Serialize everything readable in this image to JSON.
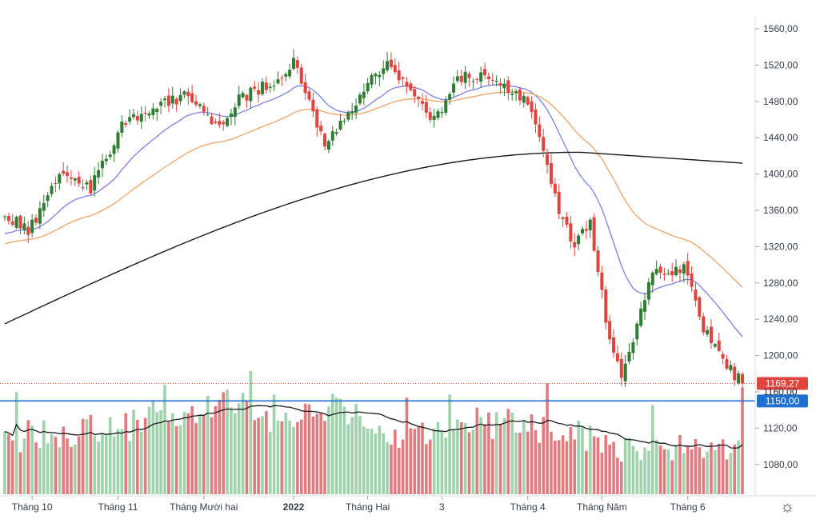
{
  "chart_data": {
    "type": "candlestick",
    "title": "",
    "xlabel": "",
    "ylabel": "",
    "ylim": [
      1053,
      1578
    ],
    "y_ticks": [
      1080,
      1120,
      1160,
      1200,
      1240,
      1280,
      1320,
      1360,
      1400,
      1440,
      1480,
      1520,
      1560
    ],
    "y_tick_labels": [
      "1080,00",
      "1120,00",
      "1160,00",
      "1200,00",
      "1240,00",
      "1280,00",
      "1320,00",
      "1360,00",
      "1400,00",
      "1440,00",
      "1480,00",
      "1520,00",
      "1560,00"
    ],
    "x_ticks": [
      {
        "label": "Tháng 10",
        "index": 7,
        "bold": false
      },
      {
        "label": "Tháng 11",
        "index": 29,
        "bold": false
      },
      {
        "label": "Tháng Mười hai",
        "index": 51,
        "bold": false
      },
      {
        "label": "2022",
        "index": 74,
        "bold": true
      },
      {
        "label": "Tháng Hai",
        "index": 93,
        "bold": false
      },
      {
        "label": "3",
        "index": 112,
        "bold": false
      },
      {
        "label": "Tháng 4",
        "index": 134,
        "bold": false
      },
      {
        "label": "Tháng Năm",
        "index": 153,
        "bold": false
      },
      {
        "label": "Tháng 6",
        "index": 175,
        "bold": false
      }
    ],
    "last_price": {
      "value": 1169.27,
      "label": "1169,27",
      "color": "#e0443d"
    },
    "hidden_label": "1160,00",
    "support_line": {
      "value": 1150,
      "label": "1150,00",
      "color": "#1e6fd0"
    },
    "colors": {
      "up": "#2e7d32",
      "down": "#e0443d",
      "vol_up": "#9ed3ac",
      "vol_down": "#e27a7f",
      "ma20": "#7b7ff0",
      "ma50": "#f4a261",
      "ma200": "#1a1a1a",
      "vol_ma": "#1a1a1a"
    },
    "moving_averages": [
      {
        "period": 20,
        "color": "#7b7ff0"
      },
      {
        "period": 50,
        "color": "#f4a261"
      },
      {
        "period": 200,
        "color": "#1a1a1a"
      }
    ],
    "seed_anchors": {
      "index": [
        0,
        6,
        13,
        22,
        30,
        40,
        46,
        55,
        60,
        68,
        74,
        82,
        87,
        92,
        98,
        104,
        110,
        116,
        122,
        128,
        134,
        138,
        142,
        146,
        150,
        154,
        158,
        162,
        166,
        170,
        174,
        178,
        182,
        186,
        189
      ],
      "close": [
        1358,
        1335,
        1396,
        1385,
        1452,
        1478,
        1485,
        1455,
        1482,
        1500,
        1525,
        1435,
        1462,
        1495,
        1518,
        1495,
        1460,
        1505,
        1510,
        1498,
        1480,
        1430,
        1360,
        1320,
        1345,
        1240,
        1175,
        1235,
        1298,
        1290,
        1300,
        1240,
        1210,
        1185,
        1169.27
      ]
    },
    "ma_start": {
      "ma20": 1332,
      "ma50": 1322,
      "ma200": 1235,
      "ma200_end": 1412
    },
    "volume_anchors": {
      "index": [
        0,
        30,
        55,
        72,
        80,
        100,
        120,
        140,
        160,
        175,
        189
      ],
      "value": [
        1110,
        1120,
        1150,
        1125,
        1148,
        1112,
        1128,
        1118,
        1098,
        1100,
        1102
      ]
    },
    "n_bars": 190
  }
}
